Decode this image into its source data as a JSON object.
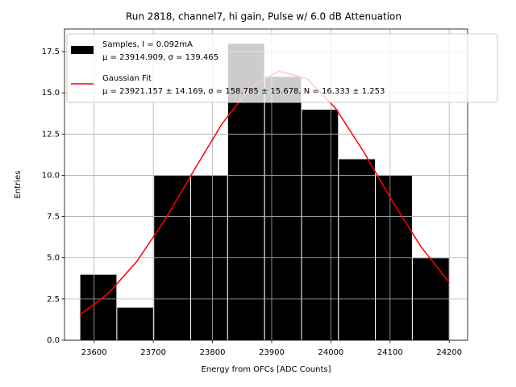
{
  "chart_data": {
    "type": "histogram",
    "title": "Run 2818, channel7, hi gain, Pulse w/ 6.0 dB Attenuation",
    "xlabel": "Energy from OFCs [ADC Counts]",
    "ylabel": "Entries",
    "bins": [
      23576,
      23638.4,
      23700.8,
      23763.2,
      23825.6,
      23888,
      23950.4,
      24012.8,
      24075.2,
      24137.6,
      24200
    ],
    "series": [
      {
        "name": "Samples, I = 0.092mA",
        "detail": "μ = 23914.909, σ = 139.465",
        "color": "#000000",
        "values": [
          4,
          2,
          10,
          10,
          18,
          16,
          14,
          11,
          10,
          5
        ]
      },
      {
        "type": "line",
        "name": "Gaussian Fit",
        "detail": "μ = 23921.157 ± 14.169, σ = 158.785 ± 15.678, N = 16.333 ± 1.253",
        "color": "#ff0000",
        "x": [
          23576,
          23624,
          23672,
          23720,
          23768,
          23816,
          23864,
          23912,
          23960,
          24008,
          24056,
          24104,
          24152,
          24200
        ],
        "values": [
          1.54,
          2.84,
          4.77,
          7.32,
          10.26,
          13.12,
          15.31,
          16.31,
          15.85,
          14.06,
          11.39,
          8.42,
          5.68,
          3.5
        ]
      }
    ],
    "xlim": [
      23550,
      24231
    ],
    "ylim": [
      0,
      18.87
    ],
    "xticks": [
      23600,
      23700,
      23800,
      23900,
      24000,
      24100,
      24200
    ],
    "yticks": [
      {
        "value": 0,
        "label": "0.0"
      },
      {
        "value": 2.5,
        "label": "2.5"
      },
      {
        "value": 5,
        "label": "5.0"
      },
      {
        "value": 7.5,
        "label": "7.5"
      },
      {
        "value": 10,
        "label": "10.0"
      },
      {
        "value": 12.5,
        "label": "12.5"
      },
      {
        "value": 15,
        "label": "15.0"
      },
      {
        "value": 17.5,
        "label": "17.5"
      }
    ],
    "grid": true,
    "legend": "upper left"
  }
}
